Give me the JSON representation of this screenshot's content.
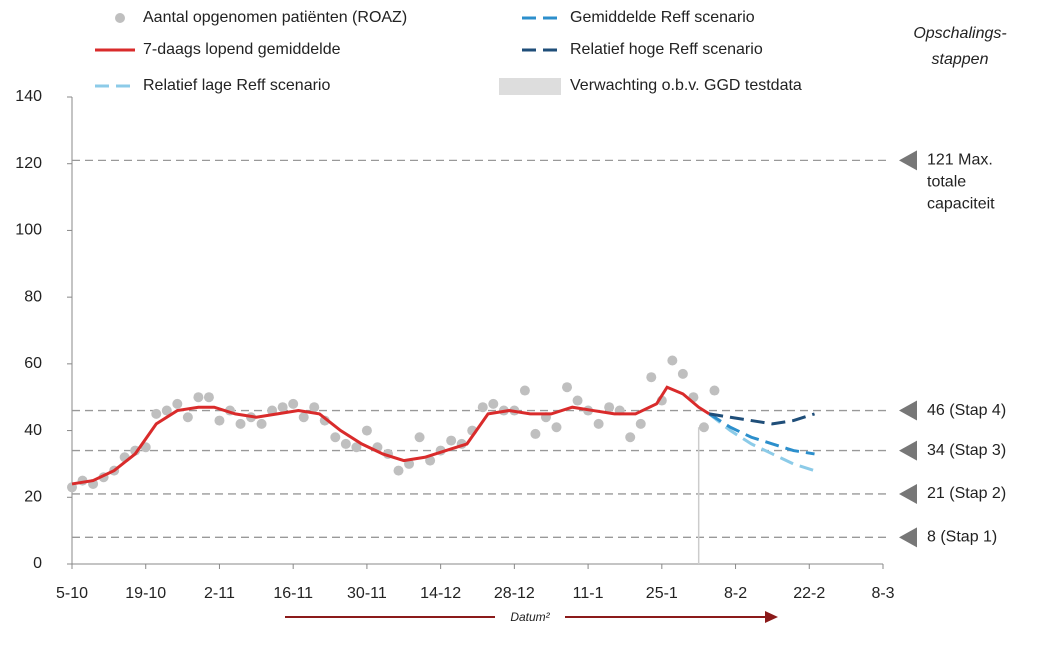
{
  "chart_data": {
    "type": "line",
    "x_label": "Datum²",
    "right_label": [
      "Opschalings-",
      "stappen"
    ],
    "xlim": [
      "5-10",
      "8-3"
    ],
    "xticks": [
      "5-10",
      "19-10",
      "2-11",
      "16-11",
      "30-11",
      "14-12",
      "28-12",
      "11-1",
      "25-1",
      "8-2",
      "22-2",
      "8-3"
    ],
    "ylim": [
      0,
      140
    ],
    "yticks": [
      0,
      20,
      40,
      60,
      80,
      100,
      120,
      140
    ],
    "reference_lines": [
      {
        "value": 121,
        "label": [
          "121 Max.",
          "totale",
          "capaciteit"
        ]
      },
      {
        "value": 46,
        "label": [
          "46 (Stap 4)"
        ]
      },
      {
        "value": 34,
        "label": [
          "34 (Stap 3)"
        ]
      },
      {
        "value": 21,
        "label": [
          "21 (Stap 2)"
        ]
      },
      {
        "value": 8,
        "label": [
          "8 (Stap 1)"
        ]
      }
    ],
    "forecast_marker": {
      "name": "Verwachting o.b.v. GGD testdata",
      "color": "#dddddd",
      "x": "1-2"
    },
    "series": [
      {
        "name": "Aantal opgenomen patiënten (ROAZ)",
        "type": "scatter",
        "color": "#bfbfbf",
        "x": [
          "5-10",
          "7-10",
          "9-10",
          "11-10",
          "13-10",
          "15-10",
          "17-10",
          "19-10",
          "21-10",
          "23-10",
          "25-10",
          "27-10",
          "29-10",
          "31-10",
          "2-11",
          "4-11",
          "6-11",
          "8-11",
          "10-11",
          "12-11",
          "14-11",
          "16-11",
          "18-11",
          "20-11",
          "22-11",
          "24-11",
          "26-11",
          "28-11",
          "30-11",
          "2-12",
          "4-12",
          "6-12",
          "8-12",
          "10-12",
          "12-12",
          "14-12",
          "16-12",
          "18-12",
          "20-12",
          "22-12",
          "24-12",
          "26-12",
          "28-12",
          "30-12",
          "1-1",
          "3-1",
          "5-1",
          "7-1",
          "9-1",
          "11-1",
          "13-1",
          "15-1",
          "17-1",
          "19-1",
          "21-1",
          "23-1",
          "25-1",
          "27-1",
          "29-1",
          "31-1",
          "2-2",
          "4-2"
        ],
        "values": [
          23,
          25,
          24,
          26,
          28,
          32,
          34,
          35,
          45,
          46,
          48,
          44,
          50,
          50,
          43,
          46,
          42,
          44,
          42,
          46,
          47,
          48,
          44,
          47,
          43,
          38,
          36,
          35,
          40,
          35,
          33,
          28,
          30,
          38,
          31,
          34,
          37,
          36,
          40,
          47,
          48,
          46,
          46,
          52,
          39,
          44,
          41,
          53,
          49,
          46,
          42,
          47,
          46,
          38,
          42,
          56,
          49,
          61,
          57,
          50,
          41,
          52
        ]
      },
      {
        "name": "7-daags lopend gemiddelde",
        "type": "line",
        "color": "#d92b2b",
        "x": [
          "5-10",
          "9-10",
          "13-10",
          "17-10",
          "21-10",
          "25-10",
          "29-10",
          "1-11",
          "5-11",
          "9-11",
          "13-11",
          "17-11",
          "21-11",
          "25-11",
          "29-11",
          "3-12",
          "7-12",
          "11-12",
          "15-12",
          "19-12",
          "23-12",
          "27-12",
          "31-12",
          "4-1",
          "8-1",
          "12-1",
          "16-1",
          "20-1",
          "24-1",
          "26-1",
          "29-1",
          "1-2",
          "3-2"
        ],
        "values": [
          24,
          25,
          28,
          33,
          42,
          46,
          47,
          47,
          45,
          44,
          45,
          46,
          45,
          40,
          36,
          33,
          31,
          32,
          34,
          36,
          45,
          46,
          45,
          45,
          47,
          46,
          45,
          45,
          48,
          53,
          51,
          47,
          45
        ]
      },
      {
        "name": "Relatief lage Reff scenario",
        "type": "line",
        "dashed": true,
        "color": "#8ccbe8",
        "x": [
          "3-2",
          "7-2",
          "11-2",
          "15-2",
          "19-2",
          "23-2"
        ],
        "values": [
          45,
          40,
          36,
          33,
          30,
          28
        ]
      },
      {
        "name": "Gemiddelde Reff scenario",
        "type": "line",
        "dashed": true,
        "color": "#2c8fcc",
        "x": [
          "3-2",
          "7-2",
          "11-2",
          "15-2",
          "19-2",
          "23-2"
        ],
        "values": [
          45,
          41,
          38,
          36,
          34,
          33
        ]
      },
      {
        "name": "Relatief hoge Reff scenario",
        "type": "line",
        "dashed": true,
        "color": "#1f4e79",
        "x": [
          "3-2",
          "7-2",
          "11-2",
          "15-2",
          "19-2",
          "23-2"
        ],
        "values": [
          45,
          44,
          43,
          42,
          43,
          45
        ]
      }
    ]
  }
}
